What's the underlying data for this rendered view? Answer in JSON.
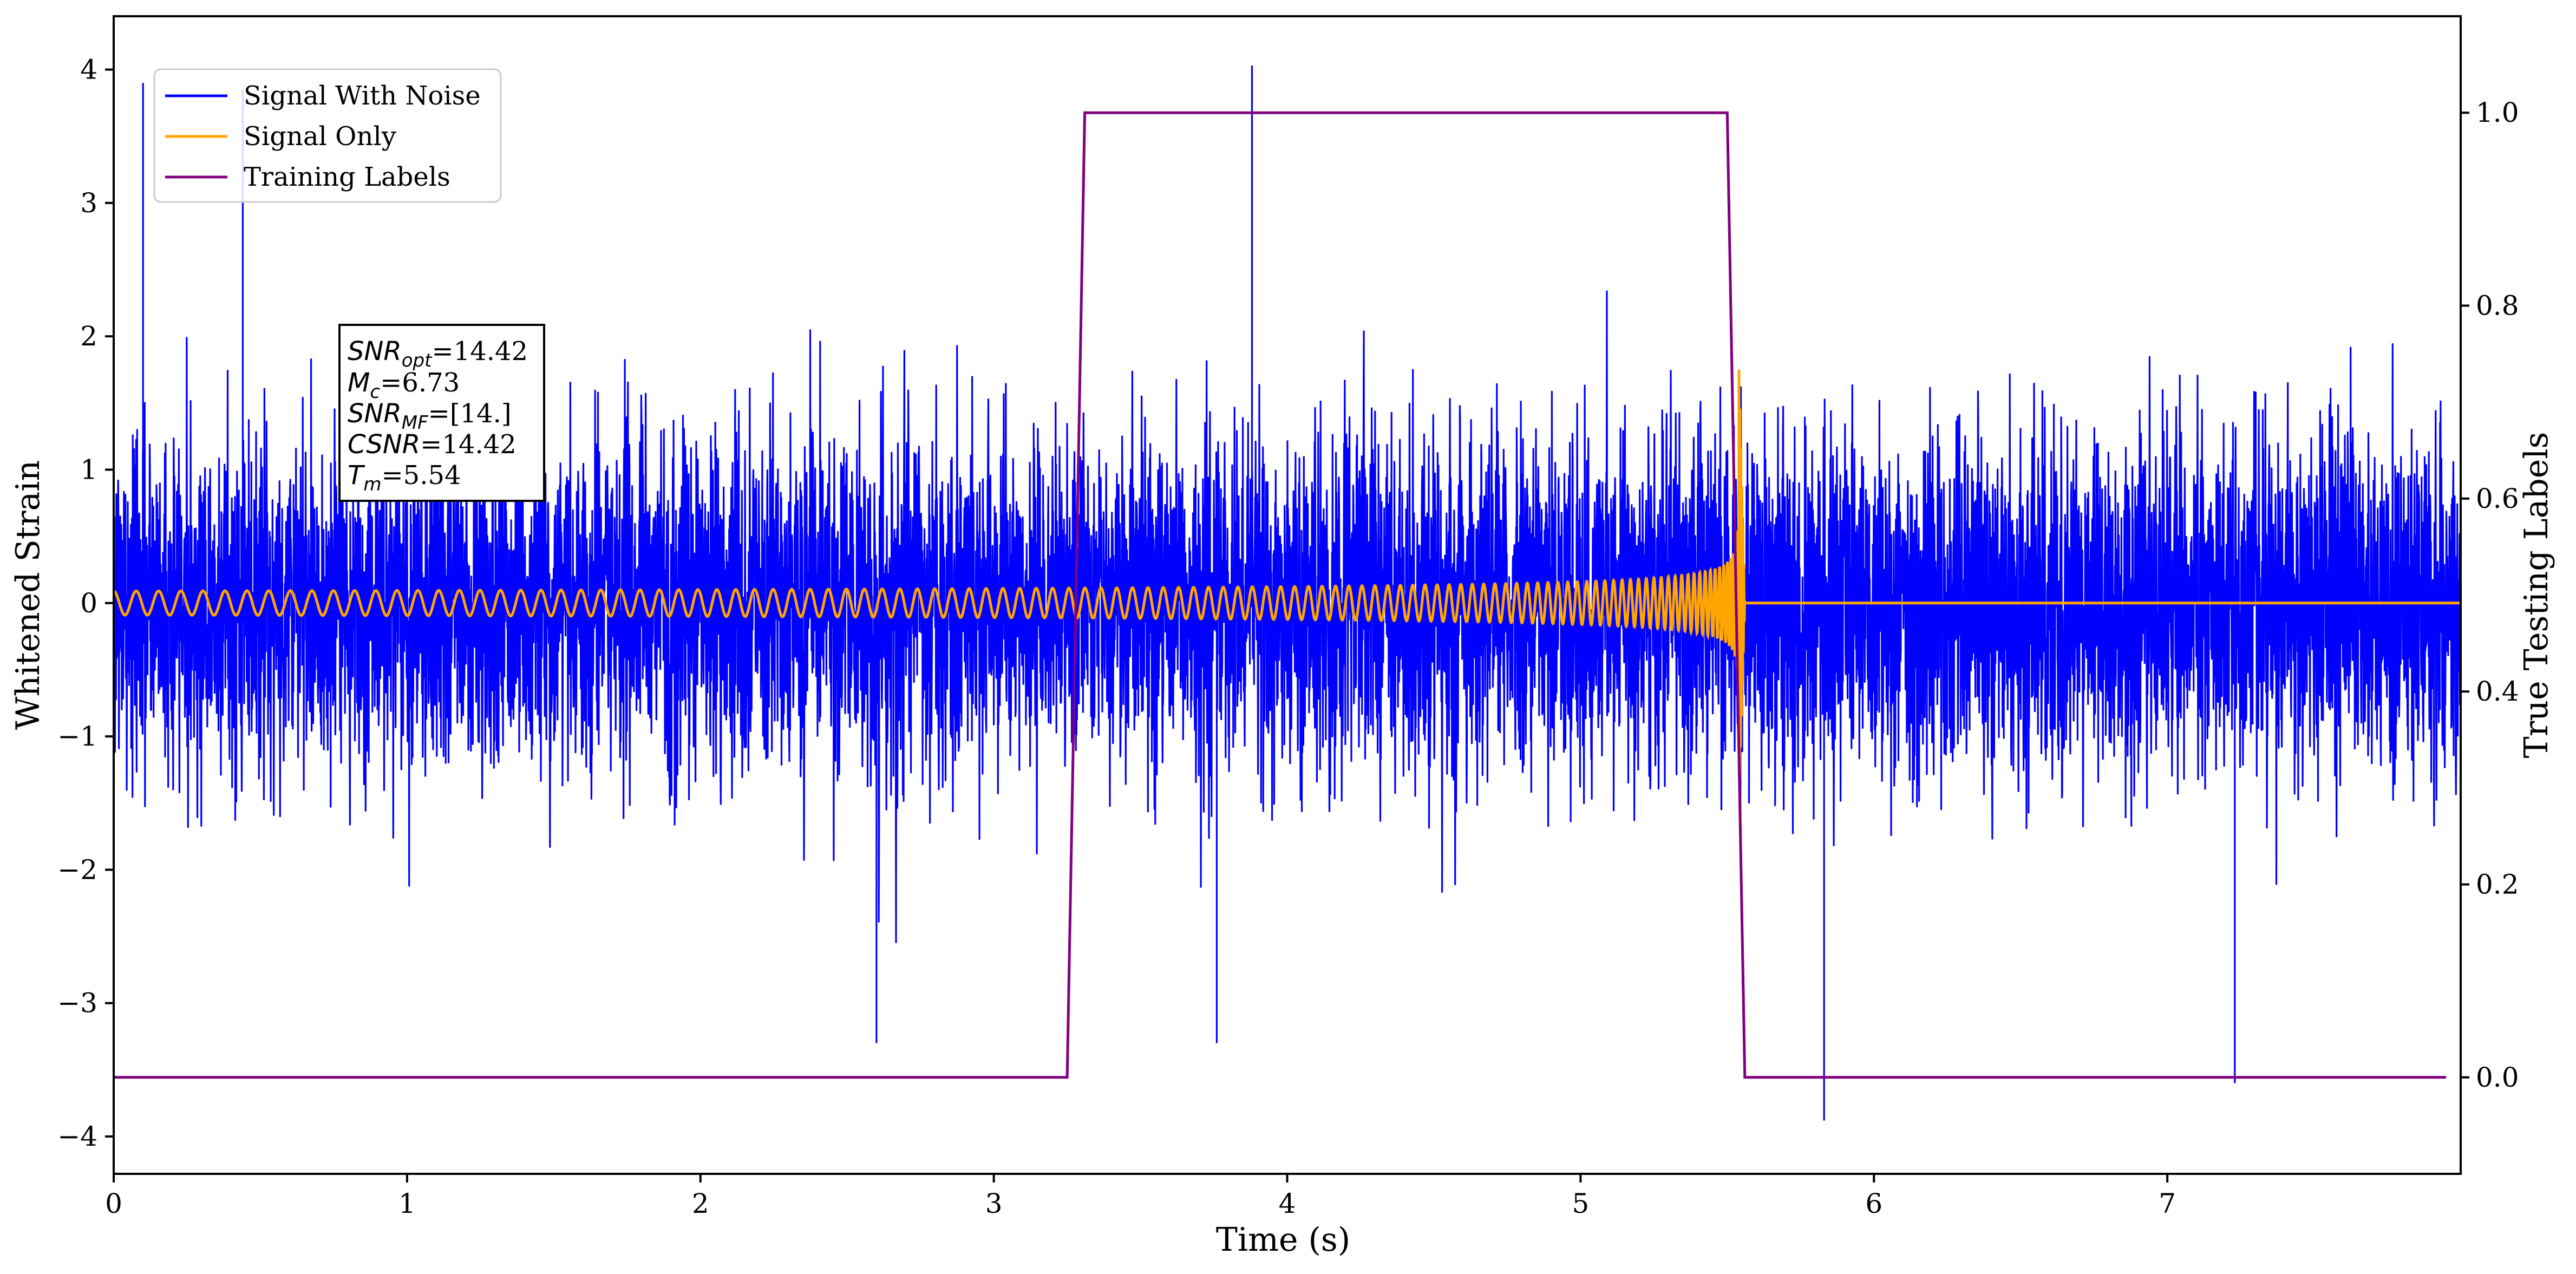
{
  "chart_data": {
    "type": "line",
    "xlabel": "Time (s)",
    "ylabel": "Whitened Strain",
    "y2label": "True Testing Labels",
    "xlim": [
      0,
      8.0
    ],
    "ylim": [
      -4.28,
      4.4
    ],
    "y2lim": [
      -0.1,
      1.1
    ],
    "x_ticks": [
      0,
      1,
      2,
      3,
      4,
      5,
      6,
      7
    ],
    "y_ticks": [
      -4,
      -3,
      -2,
      -1,
      0,
      1,
      2,
      3,
      4
    ],
    "y_tick_labels": [
      "−4",
      "−3",
      "−2",
      "−1",
      "0",
      "1",
      "2",
      "3",
      "4"
    ],
    "y2_ticks": [
      0.0,
      0.2,
      0.4,
      0.6,
      0.8,
      1.0
    ],
    "y2_tick_labels": [
      "0.0",
      "0.2",
      "0.4",
      "0.6",
      "0.8",
      "1.0"
    ],
    "grid": false,
    "legend_position": "top-left",
    "legend": [
      "Signal With Noise",
      "Signal Only",
      "Training Labels"
    ],
    "series": [
      {
        "name": "Signal With Noise",
        "color": "#0000ff",
        "axis": "left",
        "description_stats": {
          "x_start": 0,
          "x_end": 8.0,
          "noise_std": 0.62,
          "max": 4.03,
          "max_at": 3.88,
          "min": -3.88,
          "min_at": 5.83
        }
      },
      {
        "name": "Signal Only",
        "color": "#ffa500",
        "axis": "left",
        "chirp": {
          "x_start": 0,
          "merger_time": 5.54,
          "amplitude_start": 0.09,
          "amplitude_peak": 1.75,
          "freq_start_hz": 13,
          "ringdown_end": 5.56,
          "post_merger_value": 0.0
        }
      },
      {
        "name": "Training Labels",
        "color": "#800080",
        "axis": "right",
        "x": [
          0,
          3.25,
          3.31,
          5.5,
          5.56,
          7.95
        ],
        "y": [
          0,
          0,
          1,
          1,
          0,
          0
        ]
      }
    ]
  },
  "annotation": {
    "lines": [
      {
        "italic": "SNR",
        "sub": "opt",
        "rest": "=14.42"
      },
      {
        "italic": "M",
        "sub": "c",
        "rest": "=6.73"
      },
      {
        "italic": "SNR",
        "sub": "MF",
        "rest": "=[14.]"
      },
      {
        "italic": "CSNR",
        "sub": "",
        "rest": "=14.42"
      },
      {
        "italic": "T",
        "sub": "m",
        "rest": "=5.54"
      }
    ]
  },
  "colors": {
    "noise": "#0000ff",
    "signal": "#ffa500",
    "labels": "#800080",
    "axes": "#000000"
  }
}
